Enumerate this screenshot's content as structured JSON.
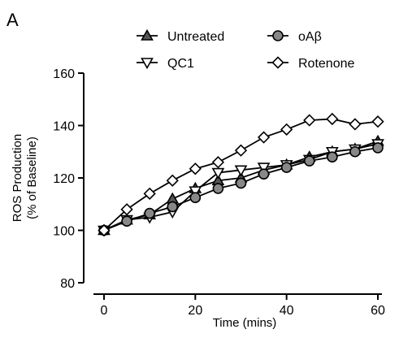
{
  "panel_label": "A",
  "chart_data": {
    "type": "line",
    "title": "",
    "xlabel": "Time (mins)",
    "ylabel": [
      "ROS Production",
      "(% of Baseline)"
    ],
    "xlim": [
      0,
      60
    ],
    "ylim": [
      80,
      160
    ],
    "xticks": [
      0,
      20,
      40,
      60
    ],
    "yticks": [
      80,
      100,
      120,
      140,
      160
    ],
    "grid": false,
    "legend_position": "top",
    "series": [
      {
        "name": "Untreated",
        "marker": "triangle-up",
        "fill": "#555555",
        "x": [
          0,
          5,
          10,
          15,
          20,
          25,
          30,
          35,
          40,
          45,
          50,
          55,
          60
        ],
        "y": [
          100,
          104,
          106,
          112,
          116,
          119,
          120,
          123,
          125,
          128,
          130,
          131,
          134
        ]
      },
      {
        "name": "QC1",
        "marker": "triangle-down",
        "fill": "#ffffff",
        "x": [
          0,
          5,
          10,
          15,
          20,
          25,
          30,
          35,
          40,
          45,
          50,
          55,
          60
        ],
        "y": [
          100,
          104,
          105,
          107,
          115,
          122,
          123,
          124,
          125,
          127,
          130,
          131,
          133
        ]
      },
      {
        "name": "oAβ",
        "marker": "circle",
        "fill": "#888888",
        "x": [
          0,
          5,
          10,
          15,
          20,
          25,
          30,
          35,
          40,
          45,
          50,
          55,
          60
        ],
        "y": [
          100,
          103.5,
          106.5,
          109,
          112.5,
          116,
          118,
          121.5,
          124,
          126.5,
          128,
          130,
          131.5
        ]
      },
      {
        "name": "Rotenone",
        "marker": "diamond",
        "fill": "#ffffff",
        "x": [
          0,
          5,
          10,
          15,
          20,
          25,
          30,
          35,
          40,
          45,
          50,
          55,
          60
        ],
        "y": [
          100,
          108,
          114,
          119,
          123.5,
          126,
          130.5,
          135.5,
          138.5,
          142,
          142.5,
          140.5,
          141.5
        ]
      }
    ]
  }
}
